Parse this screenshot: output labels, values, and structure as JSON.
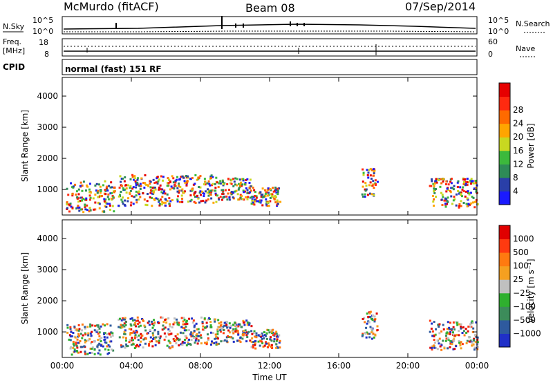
{
  "header": {
    "radar": "McMurdo (fitACF)",
    "beam": "Beam 08",
    "date": "07/Sep/2014"
  },
  "noise_panel": {
    "left_label": "N.Sky",
    "right_label": "N.Search",
    "top_tick": "10^5",
    "bottom_tick": "10^0"
  },
  "freq_panel": {
    "left_label_1": "Freq.",
    "left_label_2": "[MHz]",
    "left_ticks": [
      "18",
      "8"
    ],
    "right_label": "Nave",
    "right_ticks": [
      "60",
      "0"
    ]
  },
  "cpid": {
    "label": "CPID",
    "value": "normal (fast) 151 RF"
  },
  "chart_data": [
    {
      "type": "heatmap",
      "title": "",
      "ylabel": "Slant Range [km]",
      "xlabel": "",
      "x_ticks": [
        "00:00",
        "04:00",
        "08:00",
        "12:00",
        "16:00",
        "20:00",
        "00:00"
      ],
      "y_ticks": [
        1000,
        2000,
        3000,
        4000
      ],
      "xlim": [
        0,
        24
      ],
      "ylim": [
        180,
        4600
      ],
      "colorbar": {
        "label": "Power [dB]",
        "ticks": [
          "4",
          "8",
          "12",
          "16",
          "20",
          "24",
          "28"
        ],
        "colors": [
          "#1a1aff",
          "#2a3fa8",
          "#2e8b57",
          "#3cb93c",
          "#c8d820",
          "#ffa500",
          "#ff6a00",
          "#ff2a10",
          "#e60000"
        ]
      }
    },
    {
      "type": "heatmap",
      "title": "",
      "ylabel": "Slant Range [km]",
      "xlabel": "Time UT",
      "x_ticks": [
        "00:00",
        "04:00",
        "08:00",
        "12:00",
        "16:00",
        "20:00",
        "00:00"
      ],
      "y_ticks": [
        1000,
        2000,
        3000,
        4000
      ],
      "xlim": [
        0,
        24
      ],
      "ylim": [
        180,
        4600
      ],
      "colorbar": {
        "label": "Velocity  [m s⁻¹]",
        "ticks": [
          "1000",
          "500",
          "100",
          "25",
          "−25",
          "−100",
          "−500",
          "−1000"
        ],
        "colors": [
          "#2030c8",
          "#2e5a9e",
          "#3c8c5a",
          "#2fb02f",
          "#c0c0c0",
          "#f5a020",
          "#ff7a10",
          "#ff3a10",
          "#e00000"
        ]
      }
    }
  ]
}
